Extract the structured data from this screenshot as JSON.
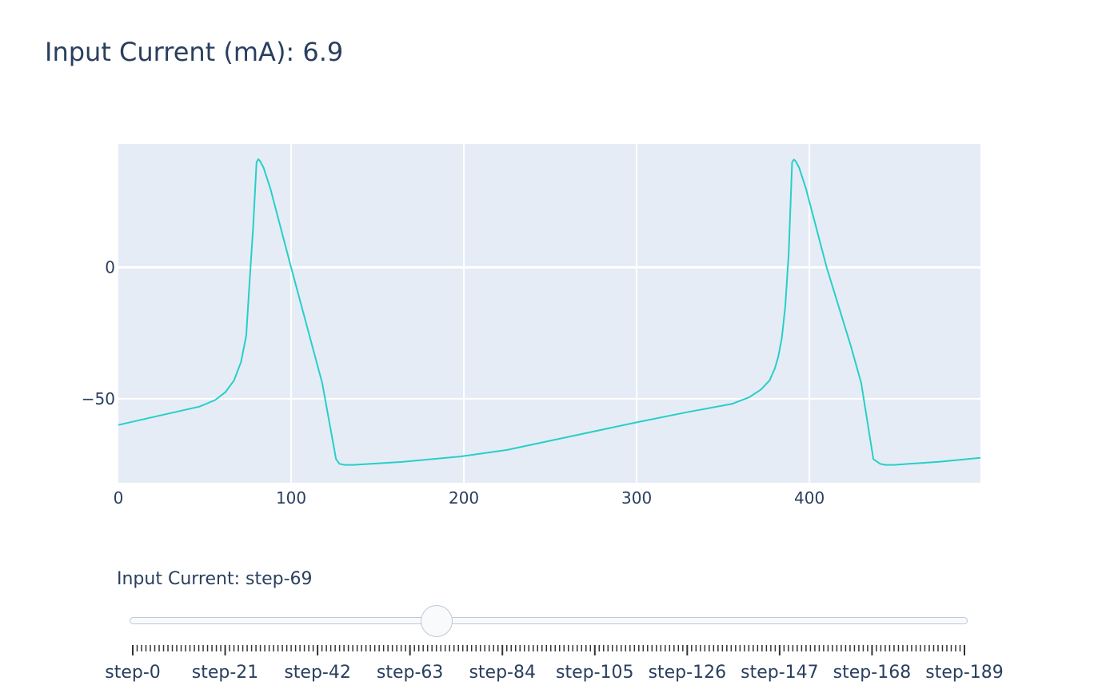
{
  "title": "Input Current (mA): 6.9",
  "colors": {
    "plot_bg": "#e5ecf6",
    "grid": "#ffffff",
    "line": "#27cfc7",
    "text": "#2a3f5f",
    "slider_border": "#bec8d9",
    "slider_fill": "#f8fafc"
  },
  "slider": {
    "label": "Input Current: step-69",
    "active_step": 69,
    "step_count": 190,
    "step_labels": [
      "step-0",
      "step-21",
      "step-42",
      "step-63",
      "step-84",
      "step-105",
      "step-126",
      "step-147",
      "step-168",
      "step-189"
    ]
  },
  "chart_data": {
    "type": "line",
    "title": "",
    "xlabel": "",
    "ylabel": "",
    "xlim": [
      0,
      499
    ],
    "ylim": [
      -82,
      47
    ],
    "x_ticks": [
      0,
      100,
      200,
      300,
      400
    ],
    "y_ticks": [
      0,
      -50
    ],
    "y_tick_labels": [
      "0",
      "−50"
    ],
    "grid": true,
    "series": [
      {
        "x": [
          0,
          20,
          47,
          56,
          62,
          67,
          71,
          74,
          76,
          78,
          80,
          81,
          82,
          84,
          88,
          100,
          118,
          126,
          128,
          131,
          136,
          165,
          198,
          225,
          250,
          275,
          300,
          330,
          355,
          365,
          372,
          377,
          380,
          382,
          384,
          386,
          388,
          390,
          391,
          392,
          394,
          398,
          410,
          424,
          430,
          437,
          441,
          444,
          449,
          475,
          499
        ],
        "y": [
          -60,
          -57,
          -53,
          -50.5,
          -47.5,
          -43,
          -36,
          -26,
          -5,
          15,
          40,
          41.2,
          40.5,
          38,
          30,
          0,
          -44,
          -73,
          -74.8,
          -75.2,
          -75.2,
          -74,
          -72,
          -69.5,
          -66,
          -62.5,
          -59,
          -55,
          -52,
          -49.5,
          -46.5,
          -43,
          -38.5,
          -34,
          -27,
          -15,
          5,
          40,
          41,
          40.5,
          38,
          30,
          0,
          -30,
          -44,
          -73,
          -74.8,
          -75.2,
          -75.2,
          -74,
          -72.5
        ]
      }
    ]
  }
}
